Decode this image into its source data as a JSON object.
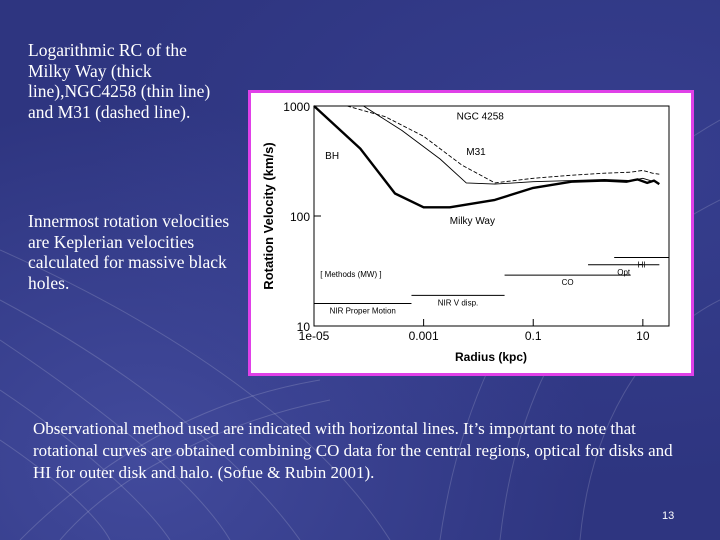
{
  "slide": {
    "text_top": "Logarithmic RC of the Milky Way (thick line),NGC4258 (thin line) and M31 (dashed line).",
    "text_mid": "Innermost rotation velocities are Keplerian velocities calculated for massive black holes.",
    "text_bottom": "Observational method used are indicated with horizontal lines. It’s important to note that rotational curves are obtained combining CO data for the central regions, optical for disks and HI for outer disk and halo. (Sofue & Rubin 2001).",
    "page_number": "13",
    "colors": {
      "background": "#2e3580",
      "frame": "#e040e8",
      "text": "#ffffff"
    }
  },
  "chart_data": {
    "type": "line",
    "xlabel": "Radius (kpc)",
    "ylabel": "Rotation Velocity (km/s)",
    "x_scale": "log",
    "y_scale": "log",
    "xlim": [
      1e-05,
      30
    ],
    "ylim": [
      10,
      1000
    ],
    "x_ticks": [
      1e-05,
      0.001,
      0.1,
      10
    ],
    "x_tick_labels": [
      "1e-05",
      "0.001",
      "0.1",
      "10"
    ],
    "y_ticks": [
      10,
      100,
      1000
    ],
    "y_tick_labels": [
      "10",
      "100",
      "1000"
    ],
    "series": [
      {
        "name": "Milky Way",
        "style": "thick",
        "x": [
          1e-05,
          7e-05,
          0.0003,
          0.001,
          0.003,
          0.02,
          0.1,
          0.5,
          2,
          5,
          8,
          12,
          16,
          20
        ],
        "y": [
          1000,
          410,
          160,
          120,
          120,
          140,
          180,
          205,
          210,
          205,
          215,
          200,
          210,
          195
        ]
      },
      {
        "name": "NGC 4258",
        "style": "thin",
        "x": [
          8e-05,
          0.0004,
          0.002,
          0.006,
          0.02,
          0.1,
          0.5,
          2,
          6,
          10,
          16
        ],
        "y": [
          1000,
          600,
          330,
          200,
          195,
          205,
          210,
          215,
          210,
          220,
          205
        ]
      },
      {
        "name": "M31",
        "style": "dashed",
        "x": [
          4e-05,
          0.0002,
          0.001,
          0.005,
          0.02,
          0.1,
          0.5,
          2,
          6,
          10,
          15,
          20
        ],
        "y": [
          1000,
          800,
          530,
          290,
          200,
          220,
          235,
          245,
          250,
          260,
          245,
          240
        ]
      }
    ],
    "method_ranges": [
      {
        "label": "NIR Proper Motion",
        "x": [
          1e-05,
          0.0006
        ],
        "y": 16
      },
      {
        "label": "NIR V disp.",
        "x": [
          0.0006,
          0.03
        ],
        "y": 19
      },
      {
        "label": "CO",
        "x": [
          0.03,
          6
        ],
        "y": 29
      },
      {
        "label": "Opt",
        "x": [
          1,
          20
        ],
        "y": 36
      },
      {
        "label": "HI",
        "x": [
          3,
          30
        ],
        "y": 42
      }
    ],
    "annotations": [
      {
        "text": "BH",
        "x": 1.6e-05,
        "y": 330
      },
      {
        "text": "NGC 4258",
        "x": 0.004,
        "y": 750
      },
      {
        "text": "M31",
        "x": 0.006,
        "y": 360
      },
      {
        "text": "Milky Way",
        "x": 0.003,
        "y": 85
      },
      {
        "text": "[ Methods (MW) ]",
        "x": 1.3e-05,
        "y": 28
      }
    ]
  }
}
